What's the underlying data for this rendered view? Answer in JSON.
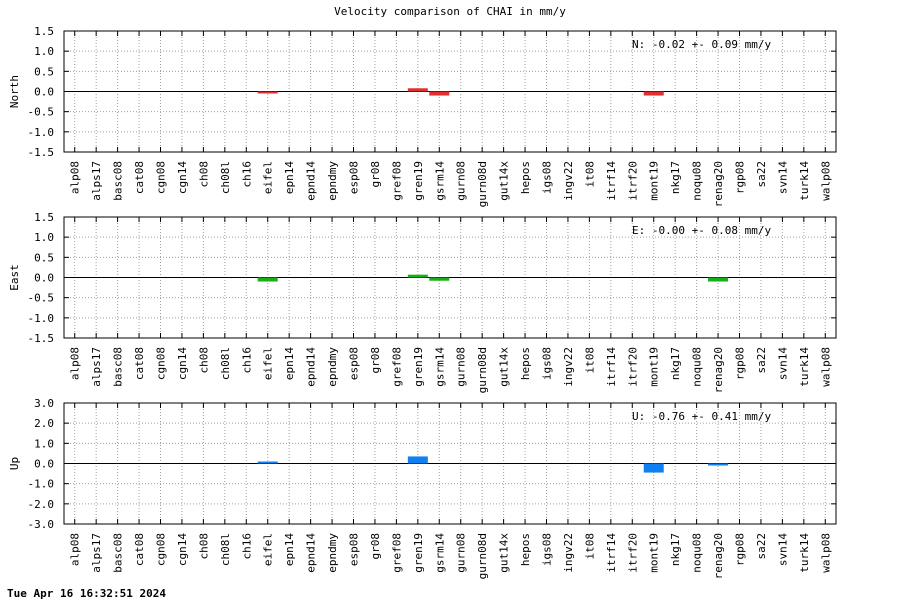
{
  "title": "Velocity comparison of CHAI in mm/y",
  "footer": "Tue Apr 16 16:32:51 2024",
  "chart_data": [
    {
      "type": "bar",
      "ylabel": "North",
      "annotation": "N:  -0.02 +-  0.09 mm/y",
      "color": "#e03030",
      "ylim": [
        -1.5,
        1.5
      ],
      "yticks": [
        1.5,
        1.0,
        0.5,
        0.0,
        -0.5,
        -1.0,
        -1.5
      ],
      "ytick_labels": [
        "1.5",
        "1.0",
        "0.5",
        "0.0",
        "-0.5",
        "-1.0",
        "-1.5"
      ],
      "grid": true,
      "categories": [
        "alp08",
        "alps17",
        "basc08",
        "cat08",
        "cgn08",
        "cgn14",
        "ch08",
        "ch08l",
        "ch16",
        "eifel",
        "epn14",
        "epnd14",
        "epndmy",
        "esp08",
        "gr08",
        "gref08",
        "gren19",
        "gsrm14",
        "gurn08",
        "gurn08d",
        "gut14x",
        "hepos",
        "igs08",
        "ingv22",
        "it08",
        "itrf14",
        "itrf20",
        "mont19",
        "nkg17",
        "noqu08",
        "renag20",
        "rgp08",
        "sa22",
        "svn14",
        "turk14",
        "walp08"
      ],
      "values": [
        null,
        null,
        null,
        null,
        null,
        null,
        null,
        null,
        null,
        -0.02,
        null,
        null,
        null,
        null,
        null,
        null,
        0.08,
        -0.1,
        null,
        null,
        null,
        null,
        null,
        null,
        null,
        null,
        null,
        -0.1,
        null,
        null,
        null,
        null,
        null,
        null,
        null,
        null
      ]
    },
    {
      "type": "bar",
      "ylabel": "East",
      "annotation": "E:  -0.00 +-  0.08 mm/y",
      "color": "#18b018",
      "ylim": [
        -1.5,
        1.5
      ],
      "yticks": [
        1.5,
        1.0,
        0.5,
        0.0,
        -0.5,
        -1.0,
        -1.5
      ],
      "ytick_labels": [
        "1.5",
        "1.0",
        "0.5",
        "0.0",
        "-0.5",
        "-1.0",
        "-1.5"
      ],
      "grid": true,
      "categories": [
        "alp08",
        "alps17",
        "basc08",
        "cat08",
        "cgn08",
        "cgn14",
        "ch08",
        "ch08l",
        "ch16",
        "eifel",
        "epn14",
        "epnd14",
        "epndmy",
        "esp08",
        "gr08",
        "gref08",
        "gren19",
        "gsrm14",
        "gurn08",
        "gurn08d",
        "gut14x",
        "hepos",
        "igs08",
        "ingv22",
        "it08",
        "itrf14",
        "itrf20",
        "mont19",
        "nkg17",
        "noqu08",
        "renag20",
        "rgp08",
        "sa22",
        "svn14",
        "turk14",
        "walp08"
      ],
      "values": [
        null,
        null,
        null,
        null,
        null,
        null,
        null,
        null,
        null,
        -0.1,
        null,
        null,
        null,
        null,
        null,
        null,
        0.07,
        -0.08,
        null,
        null,
        null,
        null,
        null,
        null,
        null,
        null,
        null,
        null,
        null,
        null,
        -0.1,
        null,
        null,
        null,
        null,
        null
      ]
    },
    {
      "type": "bar",
      "ylabel": "Up",
      "annotation": "U:  -0.76 +-  0.41 mm/y",
      "color": "#1080f0",
      "ylim": [
        -3.0,
        3.0
      ],
      "yticks": [
        3.0,
        2.0,
        1.0,
        0.0,
        -1.0,
        -2.0,
        -3.0
      ],
      "ytick_labels": [
        "3.0",
        "2.0",
        "1.0",
        "0.0",
        "-1.0",
        "-2.0",
        "-3.0"
      ],
      "grid": true,
      "categories": [
        "alp08",
        "alps17",
        "basc08",
        "cat08",
        "cgn08",
        "cgn14",
        "ch08",
        "ch08l",
        "ch16",
        "eifel",
        "epn14",
        "epnd14",
        "epndmy",
        "esp08",
        "gr08",
        "gref08",
        "gren19",
        "gsrm14",
        "gurn08",
        "gurn08d",
        "gut14x",
        "hepos",
        "igs08",
        "ingv22",
        "it08",
        "itrf14",
        "itrf20",
        "mont19",
        "nkg17",
        "noqu08",
        "renag20",
        "rgp08",
        "sa22",
        "svn14",
        "turk14",
        "walp08"
      ],
      "values": [
        null,
        null,
        null,
        null,
        null,
        null,
        null,
        null,
        null,
        0.04,
        null,
        null,
        null,
        null,
        null,
        null,
        0.35,
        null,
        null,
        null,
        null,
        null,
        null,
        null,
        null,
        null,
        null,
        -0.45,
        null,
        null,
        -0.1,
        null,
        null,
        null,
        null,
        null
      ]
    }
  ]
}
